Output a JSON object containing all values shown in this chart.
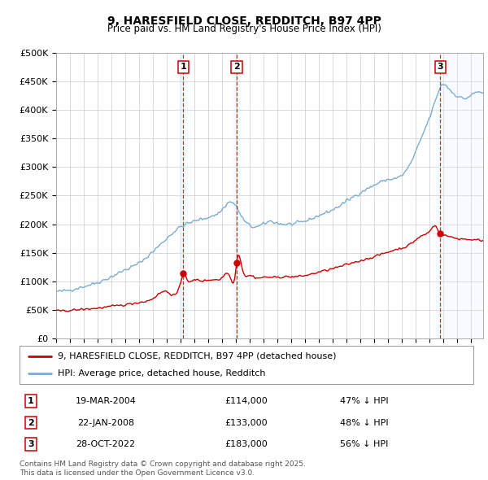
{
  "title": "9, HARESFIELD CLOSE, REDDITCH, B97 4PP",
  "subtitle": "Price paid vs. HM Land Registry's House Price Index (HPI)",
  "ylim": [
    0,
    500000
  ],
  "yticks": [
    0,
    50000,
    100000,
    150000,
    200000,
    250000,
    300000,
    350000,
    400000,
    450000,
    500000
  ],
  "ytick_labels": [
    "£0",
    "£50K",
    "£100K",
    "£150K",
    "£200K",
    "£250K",
    "£300K",
    "£350K",
    "£400K",
    "£450K",
    "£500K"
  ],
  "xlim_start": 1995.0,
  "xlim_end": 2025.9,
  "background_color": "#ffffff",
  "grid_color": "#cccccc",
  "hpi_line_color": "#7aadd4",
  "price_line_color": "#cc0000",
  "shade_color": "#ddeeff",
  "dashed_line_color": "#dd0000",
  "transactions": [
    {
      "num": 1,
      "date": "19-MAR-2004",
      "year": 2004.21,
      "price": 114000,
      "pct": "47%"
    },
    {
      "num": 2,
      "date": "22-JAN-2008",
      "year": 2008.06,
      "price": 133000,
      "pct": "48%"
    },
    {
      "num": 3,
      "date": "28-OCT-2022",
      "year": 2022.81,
      "price": 183000,
      "pct": "56%"
    }
  ],
  "legend_label_red": "9, HARESFIELD CLOSE, REDDITCH, B97 4PP (detached house)",
  "legend_label_blue": "HPI: Average price, detached house, Redditch",
  "footnote": "Contains HM Land Registry data © Crown copyright and database right 2025.\nThis data is licensed under the Open Government Licence v3.0."
}
